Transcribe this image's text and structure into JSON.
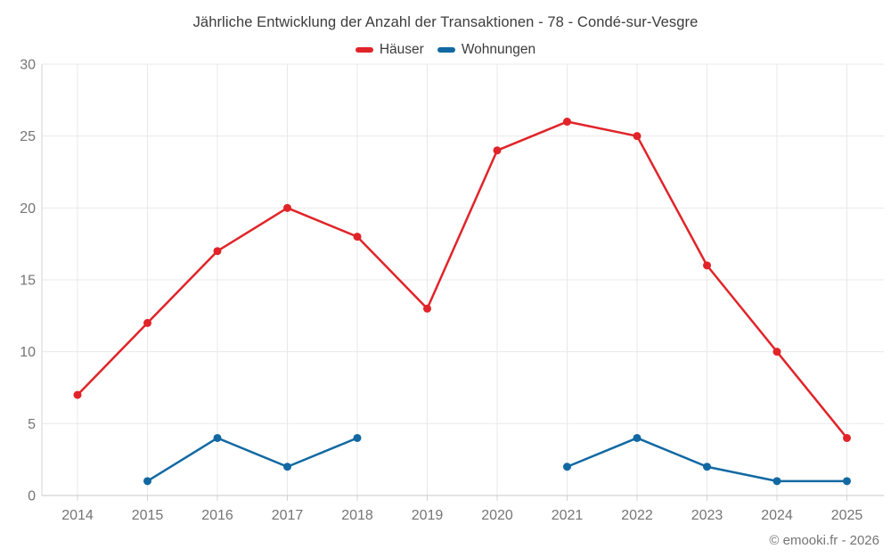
{
  "chart_data": {
    "type": "line",
    "title": "Jährliche Entwicklung der Anzahl der Transaktionen - 78 - Condé-sur-Vesgre",
    "categories": [
      "2014",
      "2015",
      "2016",
      "2017",
      "2018",
      "2019",
      "2020",
      "2021",
      "2022",
      "2023",
      "2024",
      "2025"
    ],
    "series": [
      {
        "name": "Häuser",
        "color": "#e02429",
        "values": [
          7,
          12,
          17,
          20,
          18,
          13,
          24,
          26,
          25,
          16,
          10,
          4
        ]
      },
      {
        "name": "Wohnungen",
        "color": "#1269a2",
        "values": [
          null,
          1,
          4,
          2,
          4,
          null,
          null,
          2,
          4,
          2,
          1,
          1
        ]
      }
    ],
    "xlabel": "",
    "ylabel": "",
    "ylim": [
      0,
      30
    ],
    "y_ticks": [
      0,
      5,
      10,
      15,
      20,
      25,
      30
    ],
    "grid": true,
    "legend_position": "top-center",
    "tick_label_color": "#757575",
    "grid_color": "#e9e9e9",
    "axis_color": "#c9c9c9"
  },
  "footer": {
    "credit": "© emooki.fr - 2026"
  }
}
